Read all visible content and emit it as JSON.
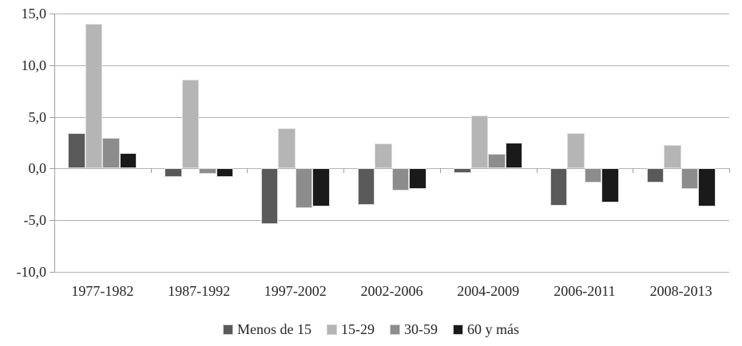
{
  "chart_data": {
    "type": "bar",
    "title": "",
    "xlabel": "",
    "ylabel": "",
    "categories": [
      "1977-1982",
      "1987-1992",
      "1997-2002",
      "2002-2006",
      "2004-2009",
      "2006-2011",
      "2008-2013"
    ],
    "series": [
      {
        "name": "Menos de 15",
        "color": "#5a5a5a",
        "values": [
          3.4,
          -0.8,
          -5.4,
          -3.5,
          -0.4,
          -3.6,
          -1.4
        ]
      },
      {
        "name": "15-29",
        "color": "#b5b5b5",
        "values": [
          14.0,
          8.6,
          3.9,
          2.4,
          5.1,
          3.4,
          2.3
        ]
      },
      {
        "name": "30-59",
        "color": "#8c8c8c",
        "values": [
          3.0,
          -0.5,
          -3.8,
          -2.1,
          1.4,
          -1.4,
          -2.0
        ]
      },
      {
        "name": "60 y más",
        "color": "#1a1a1a",
        "values": [
          1.5,
          -0.8,
          -3.7,
          -2.0,
          2.5,
          -3.3,
          -3.7
        ]
      }
    ],
    "ylim": [
      -10,
      15
    ],
    "yticks": [
      {
        "value": 15,
        "label": "15,0"
      },
      {
        "value": 10,
        "label": "10,0"
      },
      {
        "value": 5,
        "label": "5,0"
      },
      {
        "value": 0,
        "label": "0,0"
      },
      {
        "value": -5,
        "label": "-5,0"
      },
      {
        "value": -10,
        "label": "-10,0"
      }
    ],
    "grid": true,
    "legend_position": "bottom",
    "colors": {
      "gridline": "#b3b3b3",
      "axis": "#a0a0a0",
      "text": "#262626",
      "bar_border": "#dcdcdc"
    }
  }
}
